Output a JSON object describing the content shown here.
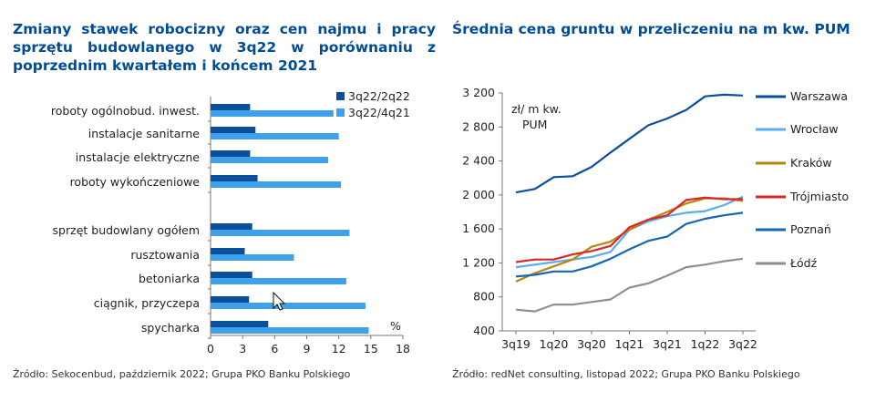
{
  "left": {
    "title": "Zmiany stawek robocizny oraz cen najmu i pracy sprzętu budowlanego w 3q22 w porównaniu z poprzednim kwartałem i końcem 2021",
    "source": "Źródło: Sekocenbud, październik 2022; Grupa PKO Banku Polskiego"
  },
  "right": {
    "title": "Średnia cena gruntu w przeliczeniu na m kw. PUM",
    "source": "Źródło: redNet consulting, listopad 2022; Grupa PKO Banku Polskiego"
  },
  "colors": {
    "title": "#004C97",
    "dark_blue": "#0A4F9C",
    "light_blue": "#3FA1EC"
  },
  "chart_data": [
    {
      "type": "bar",
      "orientation": "horizontal",
      "categories": [
        "roboty ogólnobud. inwest.",
        "instalacje sanitarne",
        "instalacje elektryczne",
        "roboty wykończeniowe",
        "",
        "sprzęt budowlany ogółem",
        "rusztowania",
        "betoniarka",
        "ciągnik, przyczepa",
        "spycharka"
      ],
      "series": [
        {
          "name": "3q22/2q22",
          "color": "#0A4F9C",
          "values": [
            3.7,
            4.2,
            3.7,
            4.4,
            null,
            3.9,
            3.2,
            3.9,
            3.6,
            5.4
          ]
        },
        {
          "name": "3q22/4q21",
          "color": "#3FA1EC",
          "values": [
            11.5,
            12.0,
            11.0,
            12.2,
            null,
            13.0,
            7.8,
            12.7,
            14.5,
            14.8
          ]
        }
      ],
      "xlim": [
        0,
        18
      ],
      "xticks": [
        "0",
        "3",
        "6",
        "9",
        "12",
        "15",
        "18"
      ],
      "unit": "%",
      "legend": "top-right"
    },
    {
      "type": "line",
      "x": [
        "3q19",
        "4q19",
        "1q20",
        "2q20",
        "3q20",
        "4q20",
        "1q21",
        "2q21",
        "3q21",
        "4q21",
        "1q22",
        "2q22",
        "3q22"
      ],
      "xticks": [
        "3q19",
        "1q20",
        "3q20",
        "1q21",
        "3q21",
        "1q22",
        "3q22"
      ],
      "ylabel": "zł/ m kw. PUM",
      "ylim": [
        400,
        3200
      ],
      "yticks": [
        "400",
        "800",
        "1 200",
        "1 600",
        "2 000",
        "2 400",
        "2 800",
        "3 200"
      ],
      "legend": "right",
      "series": [
        {
          "name": "Warszawa",
          "color": "#0A4F9C",
          "values": [
            2030,
            2070,
            2210,
            2220,
            2330,
            2500,
            2660,
            2820,
            2900,
            3000,
            3160,
            3180,
            3170
          ]
        },
        {
          "name": "Wrocław",
          "color": "#5AACEB",
          "values": [
            1150,
            1180,
            1210,
            1240,
            1270,
            1330,
            1590,
            1690,
            1750,
            1790,
            1810,
            1880,
            1980
          ]
        },
        {
          "name": "Kraków",
          "color": "#B8860B",
          "values": [
            980,
            1080,
            1160,
            1240,
            1390,
            1450,
            1590,
            1710,
            1800,
            1900,
            1960,
            1960,
            1930
          ]
        },
        {
          "name": "Trójmiasto",
          "color": "#D9262B",
          "values": [
            1210,
            1240,
            1240,
            1300,
            1340,
            1400,
            1620,
            1710,
            1760,
            1940,
            1970,
            1950,
            1950
          ]
        },
        {
          "name": "Poznań",
          "color": "#1466B6",
          "values": [
            1040,
            1060,
            1100,
            1100,
            1160,
            1250,
            1360,
            1460,
            1510,
            1660,
            1720,
            1760,
            1790
          ]
        },
        {
          "name": "Łódź",
          "color": "#8F8F8F",
          "values": [
            650,
            630,
            710,
            710,
            740,
            770,
            910,
            960,
            1050,
            1150,
            1180,
            1220,
            1250
          ]
        }
      ]
    }
  ]
}
